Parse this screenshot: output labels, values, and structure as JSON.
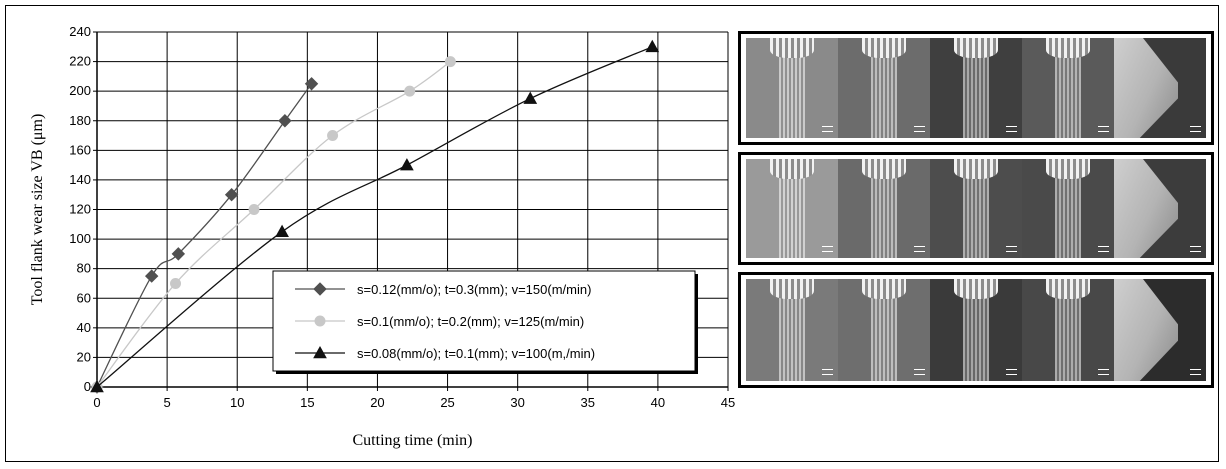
{
  "chart_data": {
    "type": "line",
    "xlabel": "Cutting time (min)",
    "ylabel": "Tool flank wear size VB (μm)",
    "xlim": [
      0,
      45
    ],
    "ylim": [
      0,
      240
    ],
    "x_ticks": [
      "0",
      "5",
      "10",
      "15",
      "20",
      "25",
      "30",
      "35",
      "40",
      "45"
    ],
    "y_ticks": [
      "0",
      "20",
      "40",
      "60",
      "80",
      "100",
      "120",
      "140",
      "160",
      "180",
      "200",
      "220",
      "240"
    ],
    "grid": true,
    "legend_position": "lower-right",
    "series": [
      {
        "name": "s=0.12(mm/o); t=0.3(mm); v=150(m/min)",
        "marker": "diamond",
        "color": "#505050",
        "x": [
          0,
          3.9,
          5.8,
          9.6,
          13.4,
          15.3
        ],
        "y": [
          0,
          75,
          90,
          130,
          180,
          205
        ]
      },
      {
        "name": "s=0.1(mm/o); t=0.2(mm); v=125(m/min)",
        "marker": "circle",
        "color": "#c8c8c8",
        "x": [
          0,
          5.6,
          11.2,
          16.8,
          22.3,
          25.2
        ],
        "y": [
          0,
          70,
          120,
          170,
          200,
          220
        ]
      },
      {
        "name": "s=0.08(mm/o); t=0.1(mm); v=100(m,/min)",
        "marker": "triangle",
        "color": "#111111",
        "x": [
          0,
          13.2,
          22.1,
          30.9,
          39.6
        ],
        "y": [
          0,
          105,
          150,
          195,
          230
        ]
      }
    ]
  },
  "photo_panels": [
    {
      "name": "panel-1",
      "tones": [
        "#8a8a8a",
        "#6c6c6c",
        "#3f3f3f",
        "#5a5a5a",
        "#3a3a3a"
      ]
    },
    {
      "name": "panel-2",
      "tones": [
        "#9a9a9a",
        "#6a6a6a",
        "#4d4d4d",
        "#4a4a4a",
        "#3c3c3c"
      ]
    },
    {
      "name": "panel-3",
      "tones": [
        "#7a7a7a",
        "#6e6e6e",
        "#3a3a3a",
        "#484848",
        "#2c2c2c"
      ]
    }
  ]
}
